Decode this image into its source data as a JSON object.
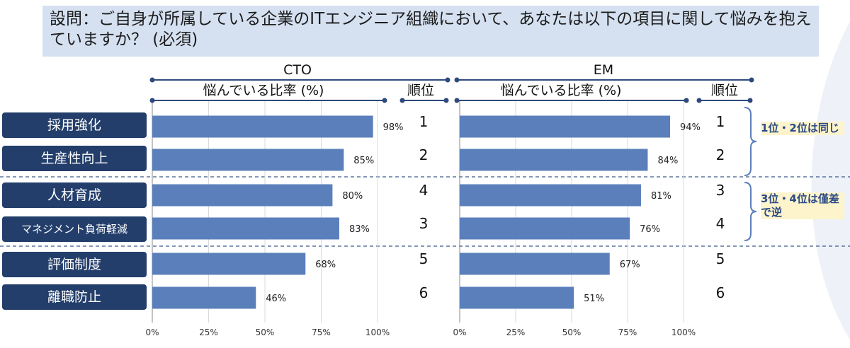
{
  "question": "設問：ご自身が所属している企業のITエンジニア組織において、あなたは以下の項目に関して悩みを抱えていますか？ (必須)",
  "chart_data": {
    "type": "bar",
    "categories": [
      "採用強化",
      "生産性向上",
      "人材育成",
      "マネジメント負荷軽減",
      "評価制度",
      "離職防止"
    ],
    "panels": [
      {
        "group": "CTO",
        "value_header": "悩んでいる比率 (%)",
        "rank_header": "順位",
        "values": [
          98,
          85,
          80,
          83,
          68,
          46
        ],
        "value_labels": [
          "98%",
          "85%",
          "80%",
          "83%",
          "68%",
          "46%"
        ],
        "ranks": [
          "1",
          "2",
          "4",
          "3",
          "5",
          "6"
        ]
      },
      {
        "group": "EM",
        "value_header": "悩んでいる比率 (%)",
        "rank_header": "順位",
        "values": [
          94,
          84,
          81,
          76,
          67,
          51
        ],
        "value_labels": [
          "94%",
          "84%",
          "81%",
          "76%",
          "67%",
          "51%"
        ],
        "ranks": [
          "1",
          "2",
          "3",
          "4",
          "5",
          "6"
        ]
      }
    ],
    "xlim": [
      0,
      100
    ],
    "xticks": [
      "0%",
      "25%",
      "50%",
      "75%",
      "100%"
    ],
    "bar_color": "#5a7fbb",
    "grid": true
  },
  "notes": [
    "1位・2位は同じ",
    "3位・4位は僅差で逆"
  ],
  "colors": {
    "category_box": "#233e6b",
    "question_bg": "#d5e1f1",
    "note_bg": "#fdf4cc",
    "note_text": "#2b4a86",
    "bracket": "#5a7fbb"
  }
}
